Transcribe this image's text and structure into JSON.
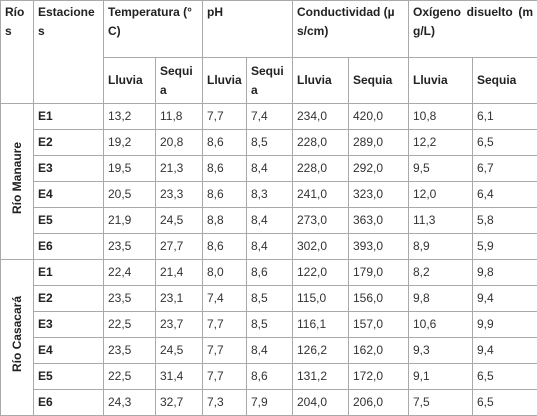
{
  "header": {
    "rios": "Ríos",
    "estaciones": "Estaciones",
    "groups": [
      {
        "label": "Temperatura (°C)",
        "sub": [
          "Lluvia",
          "Sequia"
        ]
      },
      {
        "label": "pH",
        "sub": [
          "Lluvia",
          "Sequia"
        ]
      },
      {
        "label": "Conductividad (µs/cm)",
        "sub": [
          "Lluvia",
          "Sequia"
        ]
      },
      {
        "label": "Oxígeno disuelto (mg/L)",
        "sub": [
          "Lluvia",
          "Sequia"
        ]
      }
    ]
  },
  "body": [
    {
      "river": "Río Manaure",
      "rows": [
        [
          "E1",
          "13,2",
          "11,8",
          "7,7",
          "7,4",
          "234,0",
          "420,0",
          "10,8",
          "6,1"
        ],
        [
          "E2",
          "19,2",
          "20,8",
          "8,6",
          "8,5",
          "228,0",
          "289,0",
          "12,2",
          "6,5"
        ],
        [
          "E3",
          "19,5",
          "21,3",
          "8,6",
          "8,4",
          "228,0",
          "292,0",
          "9,5",
          "6,7"
        ],
        [
          "E4",
          "20,5",
          "23,3",
          "8,6",
          "8,3",
          "241,0",
          "323,0",
          "12,0",
          "6,4"
        ],
        [
          "E5",
          "21,9",
          "24,5",
          "8,8",
          "8,4",
          "273,0",
          "363,0",
          "11,3",
          "5,8"
        ],
        [
          "E6",
          "23,5",
          "27,7",
          "8,6",
          "8,4",
          "302,0",
          "393,0",
          "8,9",
          "5,9"
        ]
      ]
    },
    {
      "river": "Río Casacará",
      "rows": [
        [
          "E1",
          "22,4",
          "21,4",
          "8,0",
          "8,6",
          "122,0",
          "179,0",
          "8,2",
          "9,8"
        ],
        [
          "E2",
          "23,5",
          "23,1",
          "7,4",
          "8,5",
          "115,0",
          "156,0",
          "9,8",
          "9,4"
        ],
        [
          "E3",
          "22,5",
          "23,7",
          "7,7",
          "8,5",
          "116,1",
          "157,0",
          "10,6",
          "9,9"
        ],
        [
          "E4",
          "23,5",
          "24,5",
          "7,7",
          "8,4",
          "126,2",
          "162,0",
          "9,3",
          "9,4"
        ],
        [
          "E5",
          "22,5",
          "31,4",
          "7,7",
          "8,6",
          "131,2",
          "172,0",
          "9,1",
          "6,5"
        ],
        [
          "E6",
          "24,3",
          "32,7",
          "7,3",
          "7,9",
          "204,0",
          "206,0",
          "7,5",
          "6,5"
        ]
      ]
    }
  ]
}
